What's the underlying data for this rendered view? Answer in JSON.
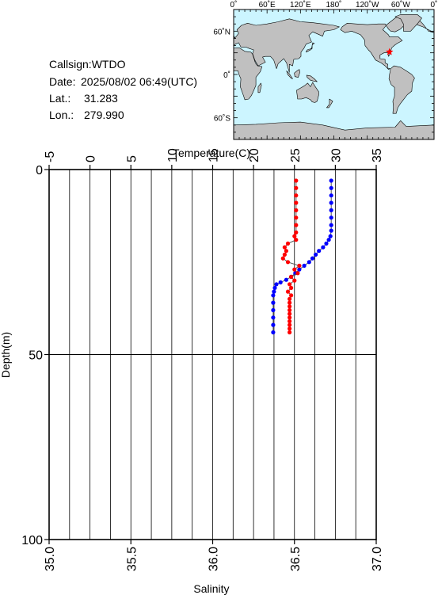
{
  "header": {
    "callsign_label": "Callsign:",
    "callsign": "WTDO",
    "date_label": "Date:",
    "date": "2025/08/02 06:49(UTC)",
    "lat_label": "Lat.:",
    "lat": "31.283",
    "lon_label": "Lon.:",
    "lon": "279.990"
  },
  "map": {
    "top_labels": [
      "0˚",
      "60˚E",
      "120˚E",
      "180˚",
      "120˚W",
      "60˚W",
      "0˚"
    ],
    "lon_ticks": [
      0,
      60,
      120,
      180,
      240,
      300,
      360
    ],
    "left_labels": [
      "60˚N",
      "0˚",
      "60˚S"
    ],
    "lat_ticks": [
      60,
      0,
      -60
    ],
    "ocean_color": "#ccf5ff",
    "land_color": "#c0c0c0",
    "marker_color": "#ff0000",
    "station_lon": 279.99,
    "station_lat": 31.283
  },
  "chart_data": {
    "type": "line",
    "ylabel": "Depth(m)",
    "ylim": [
      0,
      100
    ],
    "yticks": [
      0,
      50,
      100
    ],
    "top_axis": {
      "label": "Temperature(C)",
      "lim": [
        -5,
        35
      ],
      "ticks": [
        -5,
        0,
        5,
        10,
        15,
        20,
        25,
        30,
        35
      ]
    },
    "bottom_axis": {
      "label": "Salinity",
      "lim": [
        35.0,
        37.0
      ],
      "ticks": [
        "35.0",
        "35.5",
        "36.0",
        "36.5",
        "37.0"
      ]
    },
    "grid": true,
    "series": [
      {
        "axis": "temperature",
        "color": "#0000ff",
        "points": [
          [
            29.5,
            3
          ],
          [
            29.5,
            5
          ],
          [
            29.5,
            7
          ],
          [
            29.5,
            9
          ],
          [
            29.5,
            11
          ],
          [
            29.5,
            13
          ],
          [
            29.5,
            15
          ],
          [
            29.5,
            16.5
          ],
          [
            29.4,
            18
          ],
          [
            29.2,
            19
          ],
          [
            28.9,
            20
          ],
          [
            28.5,
            21
          ],
          [
            28.0,
            22
          ],
          [
            27.6,
            23
          ],
          [
            27.2,
            24
          ],
          [
            26.8,
            25
          ],
          [
            26.2,
            26
          ],
          [
            25.6,
            27
          ],
          [
            25.1,
            28
          ],
          [
            24.6,
            29
          ],
          [
            24.0,
            29.8
          ],
          [
            23.3,
            30.5
          ],
          [
            22.8,
            31
          ],
          [
            22.6,
            32
          ],
          [
            22.5,
            33
          ],
          [
            22.4,
            34
          ],
          [
            22.4,
            36
          ],
          [
            22.4,
            38
          ],
          [
            22.4,
            40
          ],
          [
            22.4,
            42
          ],
          [
            22.4,
            44
          ]
        ]
      },
      {
        "axis": "salinity",
        "color": "#ff0000",
        "points": [
          [
            36.51,
            3
          ],
          [
            36.51,
            5
          ],
          [
            36.51,
            7
          ],
          [
            36.51,
            9
          ],
          [
            36.51,
            11
          ],
          [
            36.51,
            13
          ],
          [
            36.51,
            15
          ],
          [
            36.51,
            17
          ],
          [
            36.5,
            18
          ],
          [
            36.51,
            19
          ],
          [
            36.46,
            20
          ],
          [
            36.44,
            21
          ],
          [
            36.45,
            22
          ],
          [
            36.44,
            23
          ],
          [
            36.43,
            24
          ],
          [
            36.46,
            25
          ],
          [
            36.53,
            26
          ],
          [
            36.5,
            27
          ],
          [
            36.52,
            28
          ],
          [
            36.48,
            29
          ],
          [
            36.5,
            30
          ],
          [
            36.47,
            31
          ],
          [
            36.48,
            32
          ],
          [
            36.46,
            33
          ],
          [
            36.48,
            34
          ],
          [
            36.47,
            35
          ],
          [
            36.47,
            36
          ],
          [
            36.47,
            37
          ],
          [
            36.47,
            38
          ],
          [
            36.47,
            39
          ],
          [
            36.47,
            40
          ],
          [
            36.47,
            41
          ],
          [
            36.47,
            42
          ],
          [
            36.47,
            43
          ],
          [
            36.47,
            44
          ]
        ]
      }
    ]
  }
}
